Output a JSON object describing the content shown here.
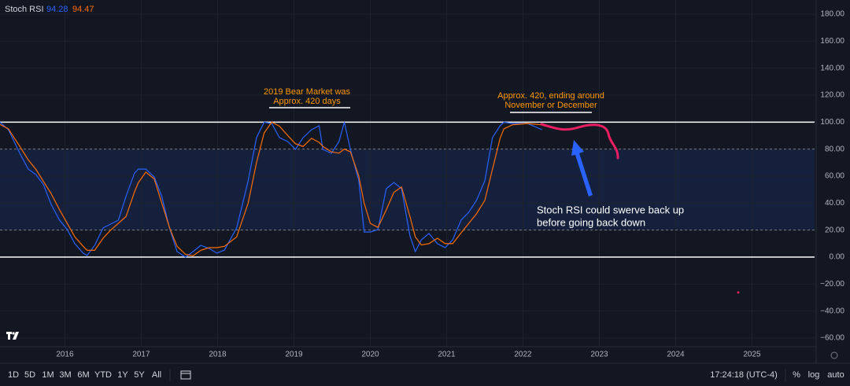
{
  "chart_data": {
    "type": "line",
    "title": "Stoch RSI",
    "x": [
      2015.15,
      2015.26,
      2015.41,
      2015.52,
      2015.62,
      2015.72,
      2015.82,
      2015.93,
      2016.03,
      2016.13,
      2016.24,
      2016.29,
      2016.39,
      2016.5,
      2016.6,
      2016.7,
      2016.8,
      2016.91,
      2016.96,
      2017.06,
      2017.17,
      2017.27,
      2017.37,
      2017.47,
      2017.58,
      2017.68,
      2017.78,
      2017.89,
      2017.99,
      2018.09,
      2018.25,
      2018.4,
      2018.51,
      2018.61,
      2018.71,
      2018.81,
      2018.92,
      2019.02,
      2019.12,
      2019.23,
      2019.33,
      2019.38,
      2019.49,
      2019.59,
      2019.66,
      2019.74,
      2019.85,
      2019.92,
      2020.0,
      2020.1,
      2020.21,
      2020.31,
      2020.41,
      2020.52,
      2020.59,
      2020.67,
      2020.77,
      2020.88,
      2020.98,
      2021.08,
      2021.19,
      2021.29,
      2021.39,
      2021.5,
      2021.6,
      2021.7,
      2021.75,
      2021.86,
      2022.06,
      2022.25
    ],
    "series": [
      {
        "color": "#2962ff",
        "last_value": 94.28,
        "values": [
          100,
          94.4,
          76.9,
          65.2,
          61.2,
          53.6,
          39,
          27.4,
          20.4,
          9.9,
          2.9,
          1.2,
          8.7,
          21.6,
          24.5,
          27.4,
          44.9,
          62,
          65.2,
          65.2,
          59.4,
          44.9,
          21.6,
          4.1,
          0,
          4.1,
          8.7,
          6.4,
          2.9,
          5.2,
          21.6,
          56.5,
          88.5,
          100,
          99,
          88.5,
          85.6,
          79.8,
          88.5,
          94.4,
          97.3,
          79.8,
          76.9,
          85.6,
          100,
          79.8,
          56.5,
          18.6,
          18.6,
          20.4,
          50.7,
          55.3,
          50.7,
          15.7,
          4.1,
          12.8,
          17.5,
          9.9,
          7,
          12.8,
          27.4,
          33.2,
          41.9,
          56.5,
          88.5,
          97.3,
          100,
          99,
          99,
          94.4
        ]
      },
      {
        "color": "#ff6d00",
        "last_value": 94.47,
        "values": [
          98.3,
          95,
          82,
          72,
          65,
          56,
          47,
          35,
          25,
          15,
          8,
          5,
          5,
          14,
          20,
          25,
          30,
          48,
          55,
          63,
          58,
          40,
          22,
          8,
          2,
          1,
          5,
          7,
          7,
          8,
          15,
          40,
          70,
          92,
          100,
          97,
          90,
          84,
          82,
          88,
          85,
          82,
          78,
          77,
          80,
          78,
          60,
          40,
          25,
          22,
          35,
          48,
          52,
          30,
          15,
          9,
          10,
          14,
          10,
          10,
          18,
          25,
          32,
          42,
          65,
          88,
          95,
          98,
          99,
          98
        ]
      }
    ],
    "upper_band": 80,
    "lower_band": 20,
    "levels": [
      100,
      0
    ],
    "xlim": [
      2015.15,
      2025.82
    ],
    "xticks": [
      2016,
      2017,
      2018,
      2019,
      2020,
      2021,
      2022,
      2023,
      2024,
      2025
    ],
    "ylim": [
      -66.4,
      190.5
    ],
    "yticks": [
      {
        "value": 180,
        "label": "180.00"
      },
      {
        "value": 160,
        "label": "160.00"
      },
      {
        "value": 140,
        "label": "140.00"
      },
      {
        "value": 120,
        "label": "120.00"
      },
      {
        "value": 100,
        "label": "100.00"
      },
      {
        "value": 80,
        "label": "80.00"
      },
      {
        "value": 60,
        "label": "60.00"
      },
      {
        "value": 40,
        "label": "40.00"
      },
      {
        "value": 20,
        "label": "20.00"
      },
      {
        "value": 0,
        "label": "0.00"
      },
      {
        "value": -20,
        "label": "−20.00"
      },
      {
        "value": -40,
        "label": "−40.00"
      },
      {
        "value": -60,
        "label": "−60.00"
      }
    ],
    "grid": true,
    "annotations": [
      [
        "2019 Bear Market was",
        "Approx. 420 days"
      ],
      [
        "Approx. 420, ending around",
        "November or December"
      ],
      [
        "Stoch RSI could swerve back up",
        "before going back down"
      ]
    ]
  },
  "toolbar": {
    "ranges": [
      "1D",
      "5D",
      "1M",
      "3M",
      "6M",
      "YTD",
      "1Y",
      "5Y",
      "All"
    ],
    "clock": "17:24:18 (UTC-4)",
    "options": [
      "%",
      "log",
      "auto"
    ]
  }
}
